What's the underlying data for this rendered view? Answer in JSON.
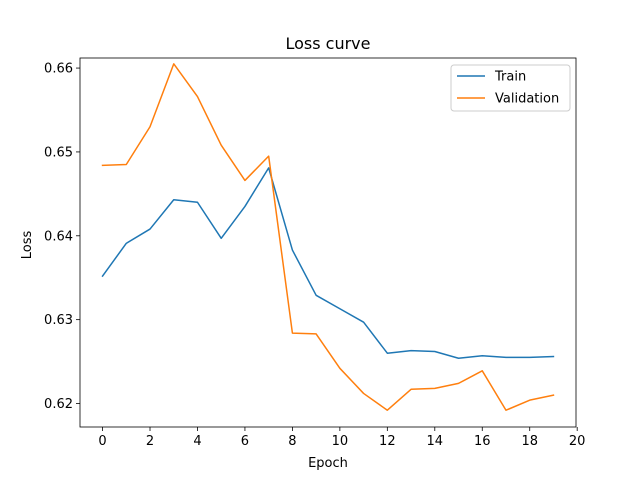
{
  "chart_data": {
    "type": "line",
    "title": "Loss curve",
    "xlabel": "Epoch",
    "ylabel": "Loss",
    "xlim": [
      -0.95,
      19.95
    ],
    "ylim": [
      0.6172,
      0.6612
    ],
    "xticks": [
      0,
      2,
      4,
      6,
      8,
      10,
      12,
      14,
      16,
      18,
      20
    ],
    "yticks": [
      0.62,
      0.63,
      0.64,
      0.65,
      0.66
    ],
    "ytick_labels": [
      "0.62",
      "0.63",
      "0.64",
      "0.65",
      "0.66"
    ],
    "legend_position": "top-right",
    "grid": false,
    "x": [
      0,
      1,
      2,
      3,
      4,
      5,
      6,
      7,
      8,
      9,
      10,
      11,
      12,
      13,
      14,
      15,
      16,
      17,
      18,
      19
    ],
    "series": [
      {
        "name": "Train",
        "color": "#1f77b4",
        "values": [
          0.6352,
          0.6391,
          0.6408,
          0.6443,
          0.644,
          0.6397,
          0.6435,
          0.6481,
          0.6383,
          0.6329,
          0.6313,
          0.6297,
          0.626,
          0.6263,
          0.6262,
          0.6254,
          0.6257,
          0.6255,
          0.6255,
          0.6256
        ]
      },
      {
        "name": "Validation",
        "color": "#ff7f0e",
        "values": [
          0.6484,
          0.6485,
          0.653,
          0.6605,
          0.6566,
          0.6508,
          0.6466,
          0.6495,
          0.6284,
          0.6283,
          0.6242,
          0.6212,
          0.6192,
          0.6217,
          0.6218,
          0.6224,
          0.6239,
          0.6192,
          0.6204,
          0.621
        ]
      }
    ]
  }
}
